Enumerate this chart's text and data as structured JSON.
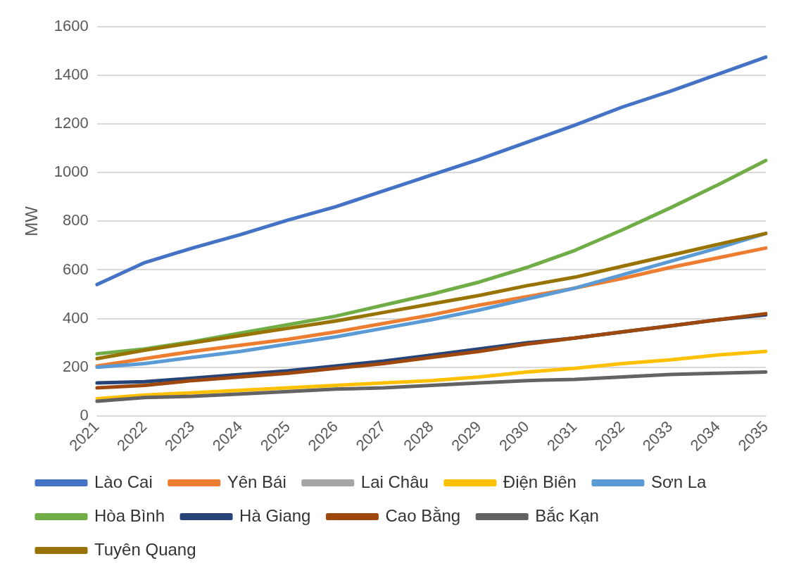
{
  "chart_data": {
    "type": "line",
    "ylabel": "MW",
    "categories": [
      "2021",
      "2022",
      "2023",
      "2024",
      "2025",
      "2026",
      "2027",
      "2028",
      "2029",
      "2030",
      "2031",
      "2032",
      "2033",
      "2034",
      "2035"
    ],
    "ylim": [
      0,
      1600
    ],
    "yticks": [
      0,
      200,
      400,
      600,
      800,
      1000,
      1200,
      1400,
      1600
    ],
    "grid": "y",
    "legend": "bottom",
    "marker": "none",
    "line_style": "solid",
    "series": [
      {
        "name": "Lào Cai",
        "color": "#4472c4",
        "values": [
          540,
          630,
          690,
          745,
          805,
          860,
          925,
          990,
          1055,
          1125,
          1195,
          1270,
          1335,
          1405,
          1475
        ]
      },
      {
        "name": "Yên Bái",
        "color": "#ed7d31",
        "values": [
          205,
          235,
          265,
          290,
          315,
          345,
          380,
          415,
          455,
          490,
          525,
          565,
          610,
          650,
          690
        ]
      },
      {
        "name": "Lai Châu",
        "color": "#a5a5a5",
        "values": [
          null,
          null,
          null,
          null,
          null,
          null,
          null,
          null,
          null,
          null,
          null,
          null,
          null,
          null,
          null
        ]
      },
      {
        "name": "Điện Biên",
        "color": "#ffc000",
        "values": [
          70,
          85,
          95,
          105,
          115,
          125,
          135,
          145,
          160,
          180,
          195,
          215,
          230,
          250,
          265
        ]
      },
      {
        "name": "Sơn La",
        "color": "#5b9bd5",
        "values": [
          200,
          215,
          240,
          265,
          295,
          325,
          360,
          395,
          435,
          480,
          525,
          580,
          635,
          690,
          750
        ]
      },
      {
        "name": "Hòa Bình",
        "color": "#70ad47",
        "values": [
          255,
          275,
          305,
          340,
          375,
          410,
          455,
          500,
          550,
          610,
          680,
          765,
          855,
          950,
          1050
        ]
      },
      {
        "name": "Hà Giang",
        "color": "#264478",
        "values": [
          135,
          140,
          155,
          170,
          185,
          205,
          225,
          250,
          275,
          300,
          320,
          345,
          370,
          395,
          415
        ]
      },
      {
        "name": "Cao Bằng",
        "color": "#9e480e",
        "values": [
          115,
          125,
          145,
          160,
          175,
          195,
          215,
          240,
          265,
          295,
          320,
          345,
          370,
          395,
          420
        ]
      },
      {
        "name": "Bắc Kạn",
        "color": "#636363",
        "values": [
          60,
          75,
          80,
          90,
          100,
          110,
          115,
          125,
          135,
          145,
          150,
          160,
          170,
          175,
          180
        ]
      },
      {
        "name": "Tuyên Quang",
        "color": "#997300",
        "values": [
          235,
          270,
          300,
          330,
          360,
          390,
          425,
          460,
          495,
          535,
          570,
          615,
          660,
          705,
          750
        ]
      }
    ]
  }
}
